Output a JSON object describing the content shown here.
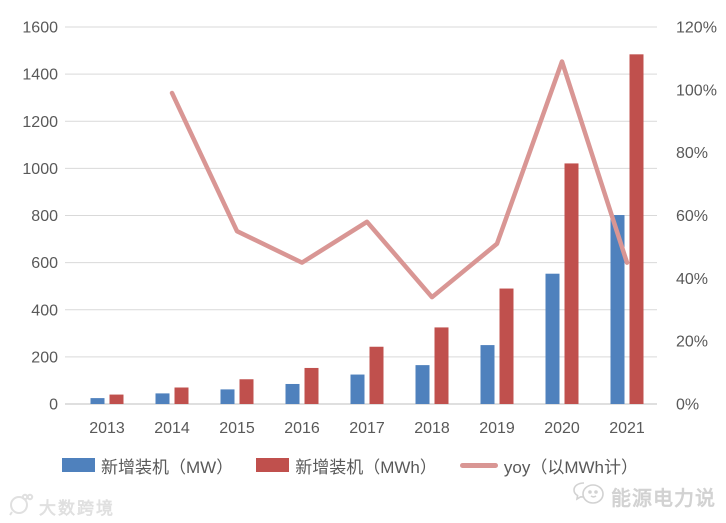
{
  "chart_data": {
    "type": "bar",
    "subtype": "combo-bar-line",
    "title": "",
    "categories": [
      "2013",
      "2014",
      "2015",
      "2016",
      "2017",
      "2018",
      "2019",
      "2020",
      "2021"
    ],
    "series": [
      {
        "name": "新增装机（MW）",
        "chart": "bar",
        "axis": "left",
        "color": "#4F81BD",
        "values": [
          25,
          45,
          62,
          85,
          125,
          165,
          250,
          553,
          802
        ]
      },
      {
        "name": "新增装机（MWh）",
        "chart": "bar",
        "axis": "left",
        "color": "#C0504D",
        "values": [
          40,
          70,
          105,
          153,
          243,
          325,
          490,
          1021,
          1484
        ]
      },
      {
        "name": "yoy（以MWh计）",
        "chart": "line",
        "axis": "right",
        "color": "#D99694",
        "values": [
          null,
          99,
          55,
          45,
          58,
          34,
          51,
          109,
          45
        ]
      }
    ],
    "left_axis": {
      "min": 0,
      "max": 1600,
      "step": 200,
      "tick_labels": [
        "0",
        "200",
        "400",
        "600",
        "800",
        "1000",
        "1200",
        "1400",
        "1600"
      ]
    },
    "right_axis": {
      "min": 0,
      "max": 120,
      "step": 20,
      "unit": "%",
      "tick_labels": [
        "0%",
        "20%",
        "40%",
        "60%",
        "80%",
        "100%",
        "120%"
      ]
    },
    "grid": "horizontal",
    "legend_position": "bottom",
    "gridline_color": "#D9D9D9",
    "axisline_color": "#BFBFBF",
    "text_color": "#595959"
  },
  "legend": {
    "items": [
      {
        "label": "新增装机（MW）",
        "color": "#4F81BD",
        "marker": "rect"
      },
      {
        "label": "新增装机（MWh）",
        "color": "#C0504D",
        "marker": "rect"
      },
      {
        "label": "yoy（以MWh计）",
        "color": "#D99694",
        "marker": "line"
      }
    ]
  },
  "watermarks": {
    "left_text": "大数跨境",
    "right_text": "能源电力说"
  }
}
